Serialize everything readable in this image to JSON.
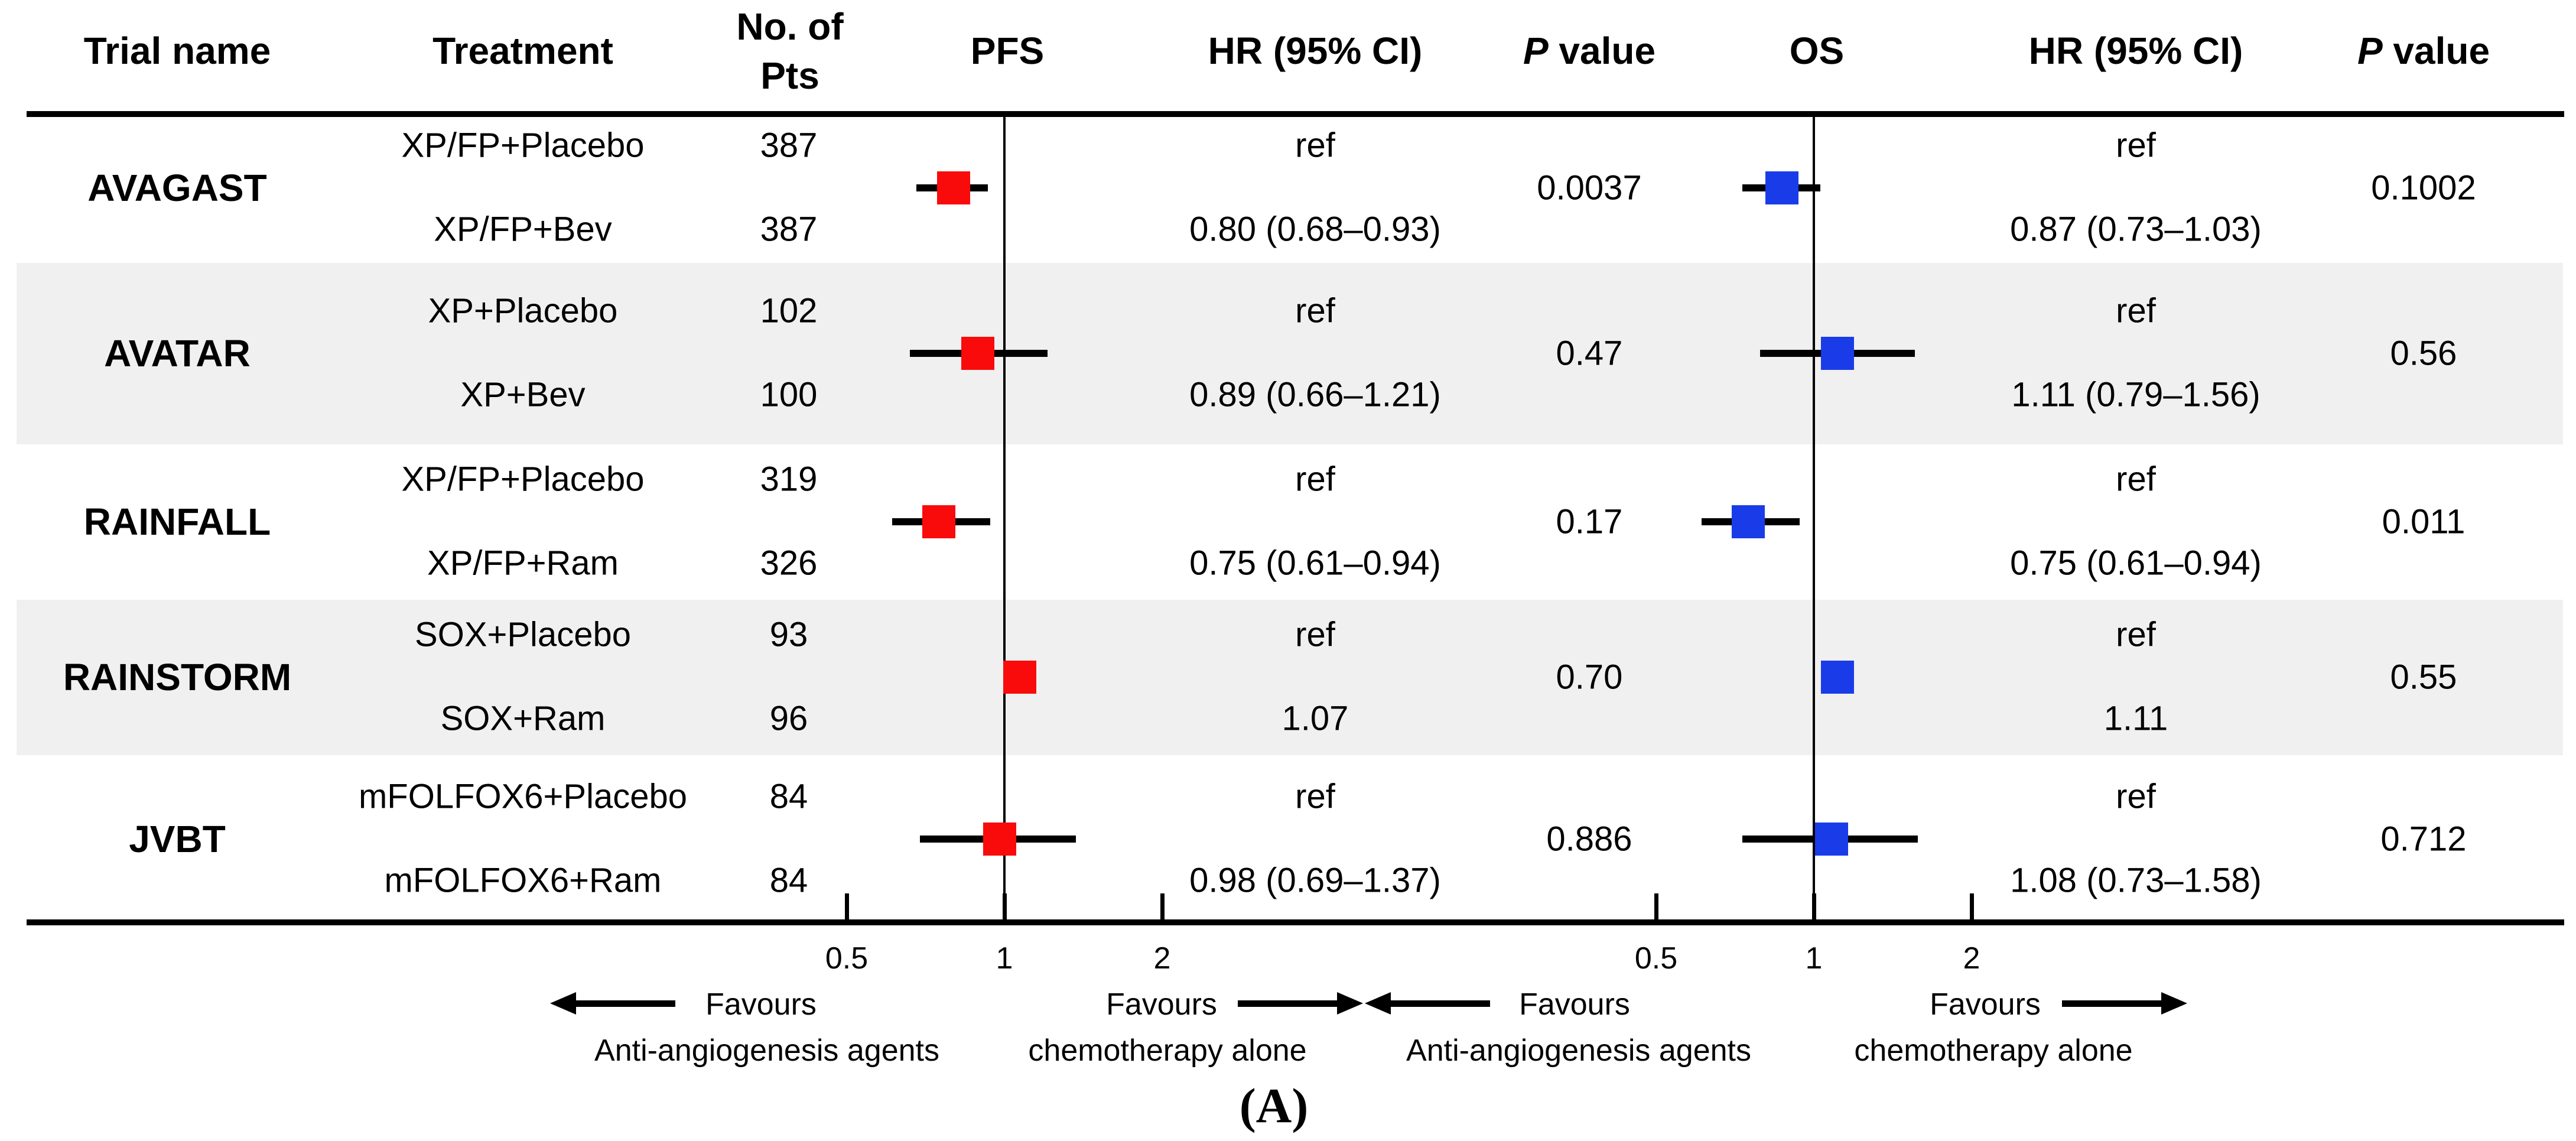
{
  "header": {
    "trial": "Trial name",
    "treatment": "Treatment",
    "pts_line1": "No. of",
    "pts_line2": "Pts",
    "pfs": "PFS",
    "hr_pfs": "HR (95% CI)",
    "p_italic": "P",
    "p_rest": " value",
    "os": "OS",
    "hr_os": "HR (95% CI)"
  },
  "chart_data": {
    "type": "forest",
    "x_scale": "log2",
    "axis_ticks": [
      0.5,
      1,
      2
    ],
    "tick_labels": [
      "0.5",
      "1",
      "2"
    ],
    "pfs_marker_color": "#f90b0b",
    "os_marker_color": "#1a3ce8",
    "trials": [
      {
        "name": "AVAGAST",
        "arms": [
          "XP/FP+Placebo",
          "XP/FP+Bev"
        ],
        "n": [
          "387",
          "387"
        ],
        "pfs": {
          "hr": 0.8,
          "lo": 0.68,
          "hi": 0.93,
          "ref_label": "ref",
          "hr_label": "0.80 (0.68–0.93)",
          "p": "0.0037"
        },
        "os": {
          "hr": 0.87,
          "lo": 0.73,
          "hi": 1.03,
          "ref_label": "ref",
          "hr_label": "0.87 (0.73–1.03)",
          "p": "0.1002"
        }
      },
      {
        "name": "AVATAR",
        "arms": [
          "XP+Placebo",
          "XP+Bev"
        ],
        "n": [
          "102",
          "100"
        ],
        "pfs": {
          "hr": 0.89,
          "lo": 0.66,
          "hi": 1.21,
          "ref_label": "ref",
          "hr_label": "0.89 (0.66–1.21)",
          "p": "0.47"
        },
        "os": {
          "hr": 1.11,
          "lo": 0.79,
          "hi": 1.56,
          "ref_label": "ref",
          "hr_label": "1.11 (0.79–1.56)",
          "p": "0.56"
        }
      },
      {
        "name": "RAINFALL",
        "arms": [
          "XP/FP+Placebo",
          "XP/FP+Ram"
        ],
        "n": [
          "319",
          "326"
        ],
        "pfs": {
          "hr": 0.75,
          "lo": 0.61,
          "hi": 0.94,
          "ref_label": "ref",
          "hr_label": "0.75 (0.61–0.94)",
          "p": "0.17"
        },
        "os": {
          "hr": 0.75,
          "lo": 0.61,
          "hi": 0.94,
          "ref_label": "ref",
          "hr_label": "0.75 (0.61–0.94)",
          "p": "0.011"
        }
      },
      {
        "name": "RAINSTORM",
        "arms": [
          "SOX+Placebo",
          "SOX+Ram"
        ],
        "n": [
          "93",
          "96"
        ],
        "pfs": {
          "hr": 1.07,
          "lo": null,
          "hi": null,
          "ref_label": "ref",
          "hr_label": "1.07",
          "p": "0.70"
        },
        "os": {
          "hr": 1.11,
          "lo": null,
          "hi": null,
          "ref_label": "ref",
          "hr_label": "1.11",
          "p": "0.55"
        }
      },
      {
        "name": "JVBT",
        "arms": [
          "mFOLFOX6+Placebo",
          "mFOLFOX6+Ram"
        ],
        "n": [
          "84",
          "84"
        ],
        "pfs": {
          "hr": 0.98,
          "lo": 0.69,
          "hi": 1.37,
          "ref_label": "ref",
          "hr_label": "0.98 (0.69–1.37)",
          "p": "0.886"
        },
        "os": {
          "hr": 1.08,
          "lo": 0.73,
          "hi": 1.58,
          "ref_label": "ref",
          "hr_label": "1.08 (0.73–1.58)",
          "p": "0.712"
        }
      }
    ],
    "footer": {
      "favours_left_line1": "Favours",
      "favours_left_line2": "Anti-angiogenesis agents",
      "favours_right_line1": "Favours",
      "favours_right_line2": "chemotherapy alone",
      "panel_label": "(A)"
    }
  }
}
